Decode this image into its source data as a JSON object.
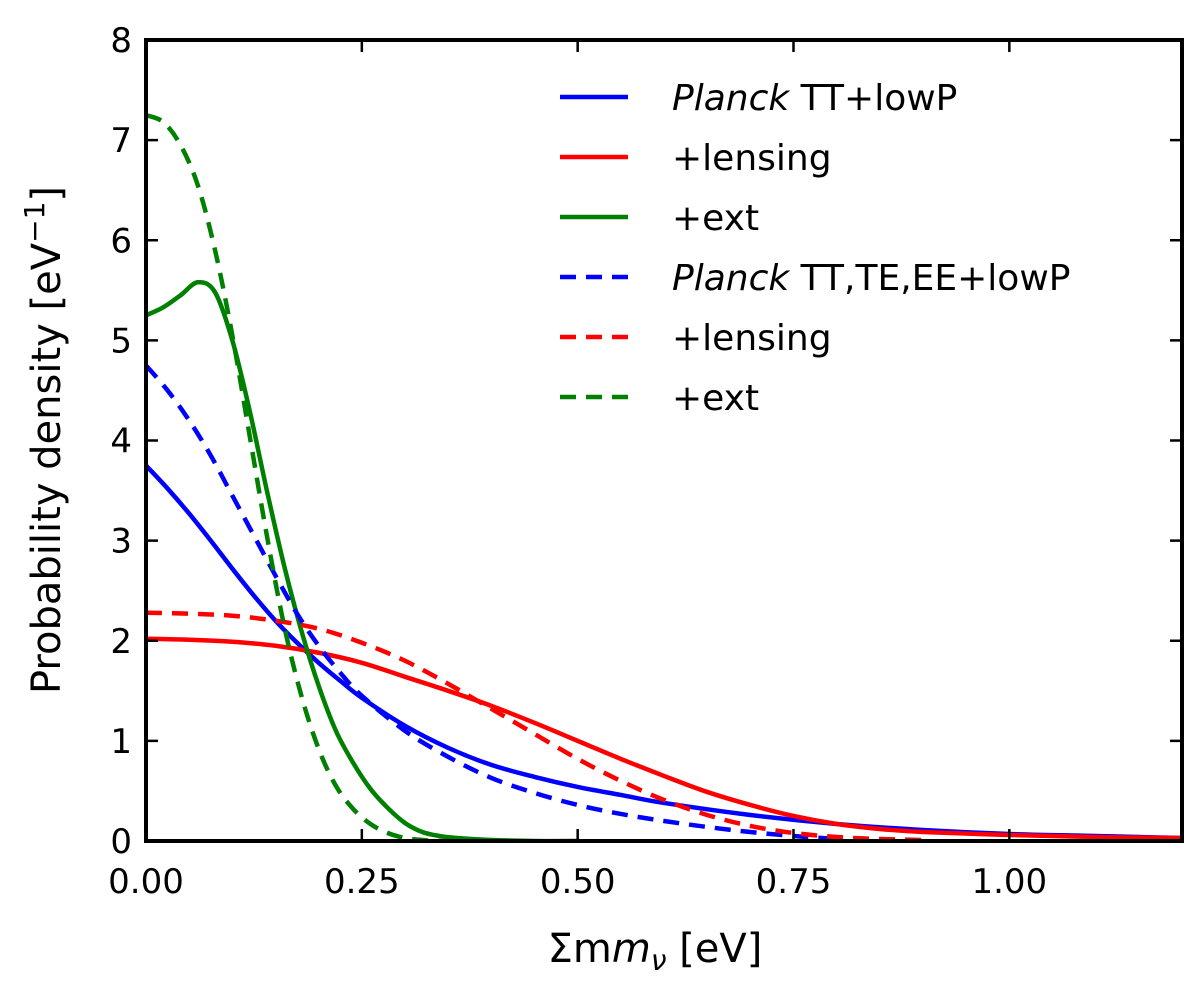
{
  "chart_data": {
    "type": "line",
    "title": "",
    "xlabel": "Σm",
    "xlabel_subscript": "ν",
    "xlabel_unit": " [eV]",
    "ylabel": "Probability density [eV",
    "ylabel_superscript": "−1",
    "ylabel_close": "]",
    "xlim": [
      0,
      1.2
    ],
    "ylim": [
      0,
      8
    ],
    "xticks": [
      {
        "value": 0.0,
        "label": "0.00"
      },
      {
        "value": 0.25,
        "label": "0.25"
      },
      {
        "value": 0.5,
        "label": "0.50"
      },
      {
        "value": 0.75,
        "label": "0.75"
      },
      {
        "value": 1.0,
        "label": "1.00"
      }
    ],
    "yticks": [
      {
        "value": 0,
        "label": "0"
      },
      {
        "value": 1,
        "label": "1"
      },
      {
        "value": 2,
        "label": "2"
      },
      {
        "value": 3,
        "label": "3"
      },
      {
        "value": 4,
        "label": "4"
      },
      {
        "value": 5,
        "label": "5"
      },
      {
        "value": 6,
        "label": "6"
      },
      {
        "value": 7,
        "label": "7"
      },
      {
        "value": 8,
        "label": "8"
      }
    ],
    "grid": false,
    "legend_position": "top-right",
    "series": [
      {
        "id": "tt-lowp",
        "name_italic": "Planck",
        "name": " TT+lowP",
        "color": "#0000ff",
        "style": "solid",
        "x": [
          0.0,
          0.025,
          0.05,
          0.075,
          0.1,
          0.125,
          0.15,
          0.175,
          0.2,
          0.225,
          0.25,
          0.3,
          0.35,
          0.4,
          0.45,
          0.5,
          0.55,
          0.6,
          0.7,
          0.8,
          0.9,
          1.0,
          1.1,
          1.2
        ],
        "y": [
          3.75,
          3.52,
          3.27,
          3.0,
          2.72,
          2.45,
          2.2,
          1.98,
          1.78,
          1.6,
          1.43,
          1.15,
          0.93,
          0.76,
          0.64,
          0.54,
          0.46,
          0.38,
          0.26,
          0.17,
          0.11,
          0.07,
          0.05,
          0.03
        ]
      },
      {
        "id": "tt-lowp-lensing",
        "name_italic": "",
        "name": "+lensing",
        "color": "#ff0000",
        "style": "solid",
        "x": [
          0.0,
          0.05,
          0.1,
          0.15,
          0.2,
          0.25,
          0.3,
          0.35,
          0.4,
          0.45,
          0.5,
          0.55,
          0.6,
          0.65,
          0.7,
          0.75,
          0.8,
          0.85,
          0.9,
          1.0,
          1.1,
          1.2
        ],
        "y": [
          2.02,
          2.01,
          1.99,
          1.95,
          1.88,
          1.78,
          1.64,
          1.5,
          1.35,
          1.18,
          1.0,
          0.82,
          0.65,
          0.49,
          0.36,
          0.25,
          0.17,
          0.12,
          0.09,
          0.06,
          0.04,
          0.03
        ]
      },
      {
        "id": "tt-lowp-ext",
        "name_italic": "",
        "name": "+ext",
        "color": "#008000",
        "style": "solid",
        "x": [
          0.0,
          0.02,
          0.04,
          0.06,
          0.08,
          0.1,
          0.12,
          0.14,
          0.16,
          0.18,
          0.2,
          0.22,
          0.24,
          0.26,
          0.28,
          0.3,
          0.32,
          0.34,
          0.36,
          0.4,
          0.45,
          0.5
        ],
        "y": [
          5.25,
          5.33,
          5.45,
          5.58,
          5.48,
          5.0,
          4.3,
          3.5,
          2.75,
          2.1,
          1.55,
          1.1,
          0.78,
          0.52,
          0.33,
          0.18,
          0.09,
          0.05,
          0.03,
          0.01,
          0.0,
          0.0
        ]
      },
      {
        "id": "ttteee-lowp",
        "name_italic": "Planck",
        "name": " TT,TE,EE+lowP",
        "color": "#0000ff",
        "style": "dashed",
        "x": [
          0.0,
          0.025,
          0.05,
          0.075,
          0.1,
          0.125,
          0.15,
          0.175,
          0.2,
          0.225,
          0.25,
          0.3,
          0.35,
          0.4,
          0.45,
          0.5,
          0.55,
          0.6,
          0.65,
          0.7,
          0.75,
          0.8
        ],
        "y": [
          4.75,
          4.5,
          4.2,
          3.85,
          3.45,
          3.05,
          2.65,
          2.27,
          1.95,
          1.68,
          1.45,
          1.1,
          0.84,
          0.63,
          0.48,
          0.36,
          0.27,
          0.2,
          0.14,
          0.09,
          0.05,
          0.02
        ]
      },
      {
        "id": "ttteee-lowp-lensing",
        "name_italic": "",
        "name": "+lensing",
        "color": "#ff0000",
        "style": "dashed",
        "x": [
          0.0,
          0.05,
          0.1,
          0.15,
          0.2,
          0.25,
          0.3,
          0.35,
          0.4,
          0.45,
          0.5,
          0.55,
          0.6,
          0.65,
          0.7,
          0.75,
          0.8,
          0.85,
          0.9
        ],
        "y": [
          2.28,
          2.27,
          2.25,
          2.2,
          2.12,
          1.98,
          1.8,
          1.57,
          1.32,
          1.07,
          0.82,
          0.6,
          0.41,
          0.26,
          0.15,
          0.08,
          0.04,
          0.02,
          0.01
        ]
      },
      {
        "id": "ttteee-lowp-ext",
        "name_italic": "",
        "name": "+ext",
        "color": "#008000",
        "style": "dashed",
        "x": [
          0.0,
          0.02,
          0.04,
          0.06,
          0.08,
          0.1,
          0.12,
          0.14,
          0.16,
          0.18,
          0.2,
          0.22,
          0.24,
          0.26,
          0.28,
          0.3,
          0.32,
          0.34,
          0.36
        ],
        "y": [
          7.25,
          7.18,
          6.95,
          6.55,
          5.9,
          5.05,
          4.05,
          3.05,
          2.15,
          1.45,
          0.92,
          0.55,
          0.32,
          0.17,
          0.08,
          0.03,
          0.01,
          0.0,
          0.0
        ]
      }
    ]
  }
}
